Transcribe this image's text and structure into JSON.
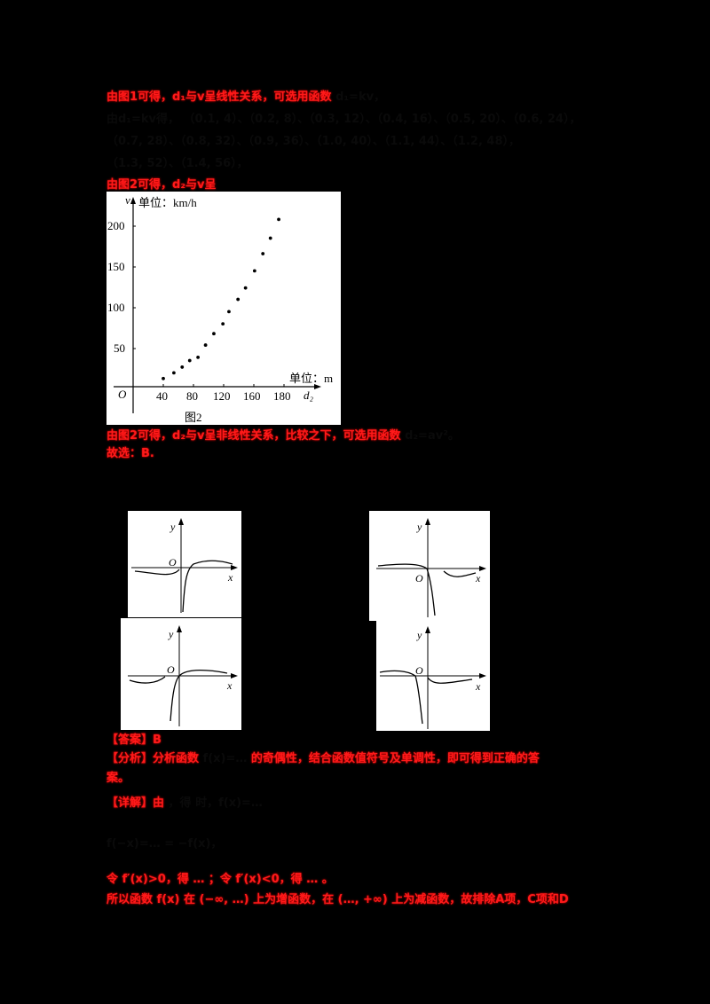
{
  "text_blocks": {
    "line1": "由图1可得，d₁与v呈线性关系，可选用函数",
    "line1_tail": "d₁=kv，",
    "line2": "由d₁=kv得，",
    "line2_tail": "（0.1, 4）、（0.2, 8）、（0.3, 12）、（0.4, 16）、（0.5, 20）、（0.6, 24），",
    "line3": "（0.7, 28）、（0.8, 32）、（0.9, 36）、（1.0, 40）、（1.1, 44）、（1.2, 48），",
    "line4": "（1.3, 52）、（1.4, 56），",
    "line5": "由图2可得，d₂与v呈",
    "line6": "由图2可得，d₂与v呈非线性关系，比较之下，可选用函数",
    "line6_tail": "d₂=av²。",
    "line7": "故选：B.",
    "answer_label": "【答案】B",
    "analysis": "【分析】分析函数",
    "analysis_mid": "f(x)=…",
    "analysis_tail": "的奇偶性，结合函数值符号及单调性，即可得到正确的答",
    "analysis_end": "案。",
    "detail": "【详解】由",
    "detail_mid": "，得",
    "detail_tail": "时，f(x)=…",
    "formula_line": "f(−x)=… = −f(x)，",
    "cond_line": "令 f′(x)>0，得 … ；令 f′(x)<0，得 … 。",
    "final_line": "所以函数 f(x) 在 (−∞, …) 上为增函数，在 (…, +∞) 上为减函数，故排除A项，C项和D"
  },
  "chart_data": {
    "type": "scatter",
    "title": "图2",
    "xlabel": "d₂",
    "ylabel": "v",
    "x_unit_label": "单位：m",
    "y_unit_label": "单位：km/h",
    "origin_label": "O",
    "x_ticks": [
      "40",
      "80",
      "120",
      "160",
      "180"
    ],
    "y_ticks": [
      "50",
      "100",
      "150",
      "200"
    ],
    "xlim": [
      0,
      200
    ],
    "ylim": [
      0,
      220
    ],
    "grid": false,
    "points": [
      {
        "x": 40,
        "y": 10
      },
      {
        "x": 54,
        "y": 17
      },
      {
        "x": 65,
        "y": 24
      },
      {
        "x": 75,
        "y": 32
      },
      {
        "x": 86,
        "y": 36
      },
      {
        "x": 96,
        "y": 51
      },
      {
        "x": 107,
        "y": 65
      },
      {
        "x": 119,
        "y": 77
      },
      {
        "x": 127,
        "y": 92
      },
      {
        "x": 139,
        "y": 107
      },
      {
        "x": 149,
        "y": 121
      },
      {
        "x": 161,
        "y": 142
      },
      {
        "x": 172,
        "y": 163
      },
      {
        "x": 182,
        "y": 182
      },
      {
        "x": 193,
        "y": 205
      }
    ]
  },
  "option_graphs": [
    {
      "id": "A",
      "x_label": "x",
      "y_label": "y",
      "origin": "O",
      "shape": "left-below-then-dive-down-right-of-origin, rise above axis on right"
    },
    {
      "id": "B",
      "x_label": "x",
      "y_label": "y",
      "origin": "O",
      "shape": "left-above, dive down at origin, right below axis"
    },
    {
      "id": "C",
      "x_label": "x",
      "y_label": "y",
      "origin": "O",
      "shape": "left-below, steep rise through origin, right above axis"
    },
    {
      "id": "D",
      "x_label": "x",
      "y_label": "y",
      "origin": "O",
      "shape": "left-above, dive down left of origin, right below axis"
    }
  ]
}
